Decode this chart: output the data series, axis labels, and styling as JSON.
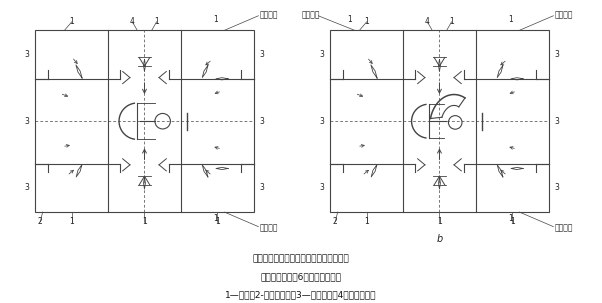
{
  "title_line1": "分室回转定位反吹装置（回转阀切换型）",
  "title_line2": "：一过滤状态；6一仓室清灰状态",
  "title_line3": "1—小室；2-回转切换阀；3—净气通道；4－回转反吹管",
  "label_b": "b",
  "bg_color": "#ffffff",
  "line_color": "#444444",
  "text_color": "#222222",
  "fig_width": 6.02,
  "fig_height": 3.03,
  "dpi": 100
}
